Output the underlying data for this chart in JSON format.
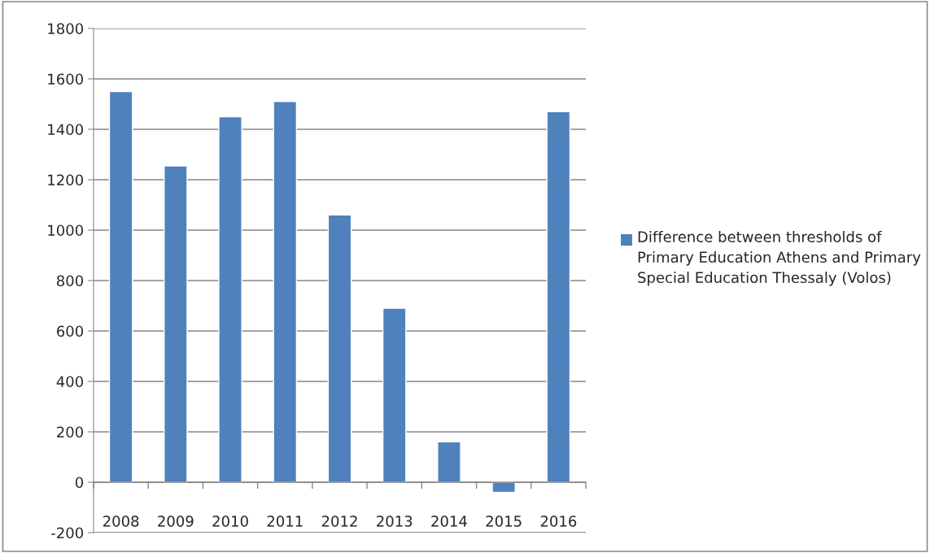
{
  "chart_data": {
    "type": "bar",
    "categories": [
      "2008",
      "2009",
      "2010",
      "2011",
      "2012",
      "2013",
      "2014",
      "2015",
      "2016"
    ],
    "series": [
      {
        "name": "Difference between thresholds of Primary Education Athens and Primary Special Education Thessaly (Volos)",
        "color": "#4f81bd",
        "values": [
          1550,
          1255,
          1450,
          1510,
          1060,
          690,
          160,
          -40,
          1470
        ]
      }
    ],
    "ylim": [
      -200,
      1800
    ],
    "yticks": [
      -200,
      0,
      200,
      400,
      600,
      800,
      1000,
      1200,
      1400,
      1600,
      1800
    ],
    "grid": "y",
    "legend": "right"
  }
}
